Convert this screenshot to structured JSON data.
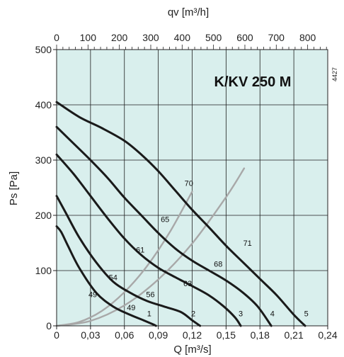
{
  "chart_data": {
    "type": "line",
    "title": "K/KV 250 M",
    "code": "4427",
    "xlabel": "Q [m³/s]",
    "ylabel": "Ps [Pa]",
    "x2label": "qv [m³/h]",
    "xlim": [
      0,
      0.24
    ],
    "ylim": [
      0,
      500
    ],
    "x2lim": [
      0,
      864
    ],
    "x_ticks": [
      "0",
      "0,03",
      "0,06",
      "0,09",
      "0,12",
      "0,15",
      "0,18",
      "0,21",
      "0,24"
    ],
    "y_ticks": [
      "0",
      "100",
      "200",
      "300",
      "400",
      "500"
    ],
    "x2_ticks": [
      "0",
      "100",
      "200",
      "300",
      "400",
      "500",
      "600",
      "700",
      "800"
    ],
    "grid": true,
    "background_color": "#d9efed",
    "curve_color": "#1a1a1a",
    "system_color": "#a8a8a8",
    "series": [
      {
        "name": "1",
        "x": [
          0,
          0.004,
          0.01,
          0.02,
          0.035,
          0.05,
          0.065,
          0.077,
          0.085,
          0.088
        ],
        "y": [
          180,
          170,
          145,
          105,
          60,
          35,
          20,
          10,
          3,
          0
        ]
      },
      {
        "name": "2",
        "x": [
          0,
          0.008,
          0.02,
          0.035,
          0.05,
          0.065,
          0.08,
          0.095,
          0.11,
          0.12,
          0.127
        ],
        "y": [
          235,
          205,
          160,
          115,
          80,
          60,
          45,
          35,
          25,
          10,
          0
        ]
      },
      {
        "name": "3",
        "x": [
          0,
          0.015,
          0.03,
          0.045,
          0.06,
          0.075,
          0.09,
          0.105,
          0.12,
          0.135,
          0.148,
          0.158,
          0.163
        ],
        "y": [
          310,
          275,
          235,
          195,
          158,
          128,
          105,
          88,
          72,
          55,
          35,
          15,
          0
        ]
      },
      {
        "name": "4",
        "x": [
          0,
          0.015,
          0.03,
          0.045,
          0.06,
          0.075,
          0.09,
          0.105,
          0.12,
          0.135,
          0.15,
          0.165,
          0.178,
          0.19
        ],
        "y": [
          360,
          330,
          300,
          268,
          232,
          200,
          168,
          140,
          118,
          100,
          82,
          60,
          35,
          0
        ]
      },
      {
        "name": "5",
        "x": [
          0,
          0.02,
          0.04,
          0.06,
          0.075,
          0.09,
          0.105,
          0.12,
          0.135,
          0.15,
          0.165,
          0.18,
          0.195,
          0.21,
          0.22
        ],
        "y": [
          405,
          378,
          358,
          335,
          310,
          280,
          245,
          210,
          178,
          145,
          115,
          85,
          55,
          20,
          0
        ]
      }
    ],
    "system_lines": [
      {
        "x": [
          0,
          0.02,
          0.04,
          0.06,
          0.08,
          0.1,
          0.12
        ],
        "y": [
          0,
          7,
          27,
          61,
          108,
          169,
          243
        ]
      },
      {
        "x": [
          0,
          0.03,
          0.06,
          0.09,
          0.12,
          0.15,
          0.166
        ],
        "y": [
          0,
          9,
          37,
          84,
          149,
          233,
          285
        ]
      }
    ],
    "annotations": [
      {
        "text": "70",
        "x": 0.117,
        "y": 253
      },
      {
        "text": "65",
        "x": 0.096,
        "y": 188
      },
      {
        "text": "61",
        "x": 0.074,
        "y": 133
      },
      {
        "text": "54",
        "x": 0.05,
        "y": 83
      },
      {
        "text": "49",
        "x": 0.032,
        "y": 52
      },
      {
        "text": "49",
        "x": 0.066,
        "y": 28
      },
      {
        "text": "56",
        "x": 0.083,
        "y": 52
      },
      {
        "text": "63",
        "x": 0.116,
        "y": 72
      },
      {
        "text": "68",
        "x": 0.143,
        "y": 107
      },
      {
        "text": "71",
        "x": 0.169,
        "y": 145
      },
      {
        "text": "1",
        "x": 0.082,
        "y": 17
      },
      {
        "text": "2",
        "x": 0.121,
        "y": 17
      },
      {
        "text": "3",
        "x": 0.163,
        "y": 17
      },
      {
        "text": "4",
        "x": 0.191,
        "y": 17
      },
      {
        "text": "5",
        "x": 0.221,
        "y": 17
      }
    ]
  }
}
